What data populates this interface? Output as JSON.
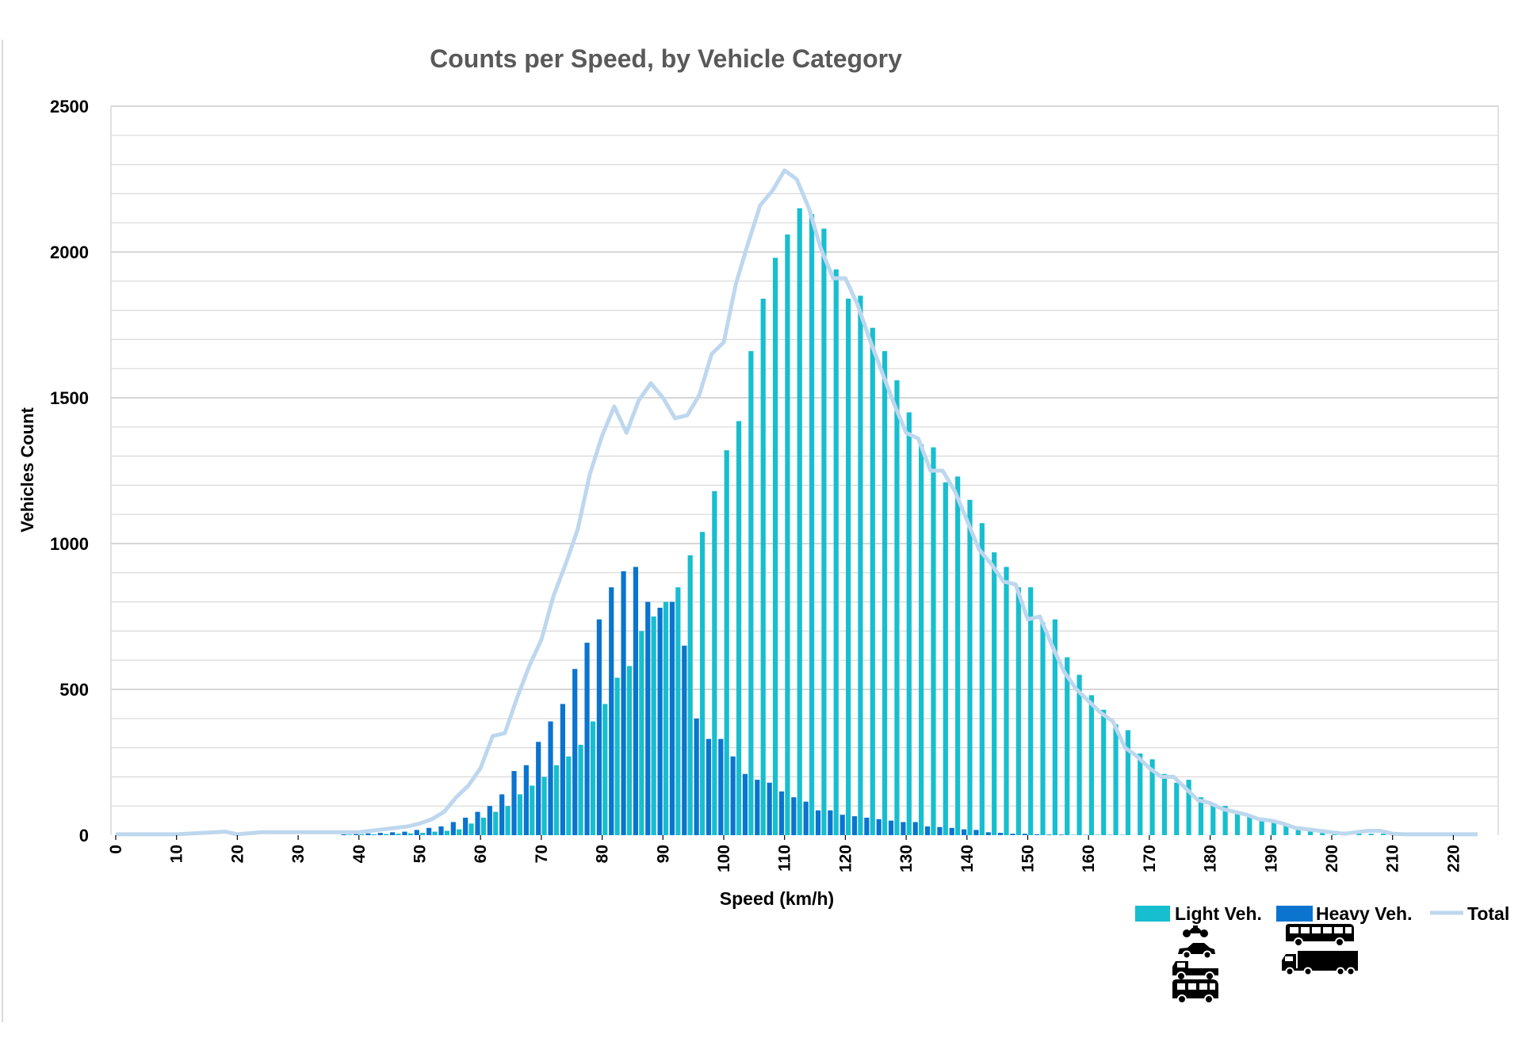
{
  "chart_data": {
    "type": "bar",
    "title": "Counts per Speed, by Vehicle Category",
    "xlabel": "Speed (km/h)",
    "ylabel": "Vehicles Count",
    "ylim": [
      0,
      2500
    ],
    "xlim": [
      0,
      224
    ],
    "yticks": [
      0,
      500,
      1000,
      1500,
      2000,
      2500
    ],
    "ytick_labels": [
      "0",
      "500",
      "1000",
      "1500",
      "2000",
      "2500"
    ],
    "xticks": [
      0,
      10,
      20,
      30,
      40,
      50,
      60,
      70,
      80,
      90,
      100,
      110,
      120,
      130,
      140,
      150,
      160,
      170,
      180,
      190,
      200,
      210,
      220
    ],
    "xtick_labels": [
      "0",
      "10",
      "20",
      "30",
      "40",
      "50",
      "60",
      "70",
      "80",
      "90",
      "100",
      "110",
      "120",
      "130",
      "140",
      "150",
      "160",
      "170",
      "180",
      "190",
      "200",
      "210",
      "220"
    ],
    "grid": true,
    "legend_position": "bottom-right",
    "colors": {
      "light": "#17BECF",
      "heavy": "#0A74CF",
      "total": "#BDD7EE",
      "title": "#595959",
      "grid": "#D9D9D9"
    },
    "x": [
      38,
      40,
      42,
      44,
      46,
      48,
      50,
      52,
      54,
      56,
      58,
      60,
      62,
      64,
      66,
      68,
      70,
      72,
      74,
      76,
      78,
      80,
      82,
      84,
      86,
      88,
      90,
      92,
      94,
      96,
      98,
      100,
      102,
      104,
      106,
      108,
      110,
      112,
      114,
      116,
      118,
      120,
      122,
      124,
      126,
      128,
      130,
      132,
      134,
      136,
      138,
      140,
      142,
      144,
      146,
      148,
      150,
      152,
      154,
      156,
      158,
      160,
      162,
      164,
      166,
      168,
      170,
      172,
      174,
      176,
      178,
      180,
      182,
      184,
      186,
      188,
      190,
      192,
      194,
      196,
      198,
      200,
      202,
      204,
      206,
      208,
      210
    ],
    "series": [
      {
        "name": "Light Veh.",
        "values": [
          2,
          3,
          3,
          4,
          5,
          6,
          8,
          12,
          15,
          20,
          40,
          60,
          80,
          100,
          140,
          170,
          200,
          240,
          270,
          310,
          390,
          450,
          540,
          580,
          700,
          750,
          800,
          850,
          960,
          1040,
          1180,
          1320,
          1420,
          1660,
          1840,
          1980,
          2060,
          2150,
          2130,
          2080,
          1940,
          1840,
          1850,
          1740,
          1660,
          1560,
          1450,
          1340,
          1330,
          1210,
          1230,
          1150,
          1070,
          970,
          920,
          850,
          850,
          730,
          740,
          610,
          550,
          480,
          430,
          380,
          360,
          280,
          260,
          210,
          180,
          190,
          130,
          110,
          100,
          80,
          70,
          60,
          50,
          40,
          30,
          25,
          20,
          15,
          10,
          8,
          5,
          5,
          3
        ]
      },
      {
        "name": "Heavy Veh.",
        "values": [
          3,
          5,
          6,
          8,
          10,
          12,
          18,
          25,
          30,
          45,
          60,
          80,
          100,
          140,
          220,
          240,
          320,
          390,
          450,
          570,
          660,
          740,
          850,
          905,
          920,
          800,
          780,
          800,
          650,
          400,
          330,
          330,
          270,
          210,
          190,
          180,
          150,
          130,
          115,
          85,
          85,
          70,
          65,
          60,
          55,
          50,
          45,
          45,
          30,
          28,
          25,
          20,
          18,
          10,
          8,
          5,
          5,
          3,
          2,
          2,
          1,
          1,
          1,
          1,
          1,
          0,
          0,
          0,
          0,
          0,
          0,
          0,
          0,
          0,
          0,
          0,
          0,
          0,
          0,
          0,
          0,
          0,
          0,
          0,
          0,
          0,
          0
        ]
      }
    ],
    "total": {
      "name": "Total",
      "x": [
        0,
        10,
        18,
        20,
        24,
        30,
        36,
        40,
        44,
        48,
        50,
        52,
        54,
        56,
        58,
        60,
        62,
        64,
        66,
        68,
        70,
        72,
        74,
        76,
        78,
        80,
        82,
        84,
        86,
        88,
        90,
        92,
        94,
        96,
        98,
        100,
        102,
        104,
        106,
        108,
        110,
        112,
        114,
        116,
        118,
        120,
        122,
        124,
        126,
        128,
        130,
        132,
        134,
        136,
        138,
        140,
        142,
        144,
        146,
        148,
        150,
        152,
        154,
        156,
        158,
        160,
        162,
        164,
        166,
        168,
        170,
        172,
        174,
        176,
        178,
        180,
        182,
        184,
        186,
        188,
        190,
        192,
        194,
        196,
        198,
        200,
        202,
        204,
        206,
        208,
        210,
        212,
        214,
        216,
        218,
        220,
        224
      ],
      "values": [
        3,
        3,
        12,
        3,
        10,
        10,
        10,
        10,
        20,
        30,
        40,
        55,
        80,
        130,
        170,
        230,
        340,
        350,
        470,
        580,
        670,
        820,
        930,
        1050,
        1240,
        1370,
        1470,
        1380,
        1490,
        1550,
        1500,
        1430,
        1440,
        1510,
        1650,
        1690,
        1890,
        2030,
        2160,
        2210,
        2280,
        2250,
        2150,
        2010,
        1910,
        1910,
        1820,
        1700,
        1590,
        1480,
        1380,
        1360,
        1250,
        1250,
        1180,
        1080,
        980,
        930,
        870,
        860,
        740,
        750,
        650,
        560,
        500,
        460,
        420,
        390,
        300,
        270,
        230,
        200,
        200,
        160,
        120,
        110,
        90,
        80,
        70,
        55,
        50,
        40,
        25,
        20,
        15,
        10,
        5,
        10,
        15,
        15,
        5,
        3,
        3,
        3,
        3,
        3,
        3
      ]
    },
    "legend": [
      {
        "name": "Light Veh.",
        "type": "bar"
      },
      {
        "name": "Heavy Veh.",
        "type": "bar"
      },
      {
        "name": "Total",
        "type": "line"
      }
    ],
    "legend_icons": {
      "light": [
        "motorcycle-icon",
        "car-icon",
        "pickup-truck-icon",
        "van-icon"
      ],
      "heavy": [
        "bus-icon",
        "truck-icon"
      ]
    }
  }
}
